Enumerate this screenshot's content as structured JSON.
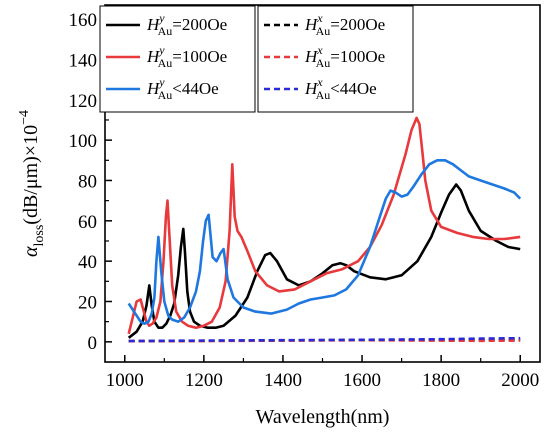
{
  "chart_data": {
    "type": "line",
    "xlabel": "Wavelength(nm)",
    "ylabel": "α_loss(dB/μm)×10^-4",
    "ylabel_parts": {
      "symbol": "α",
      "sub": "loss",
      "units": "(dB/μm)×10",
      "exp": "−4"
    },
    "xlim": [
      950,
      2050
    ],
    "ylim": [
      -10,
      167
    ],
    "xticks": [
      1000,
      1200,
      1400,
      1600,
      1800,
      2000
    ],
    "yticks": [
      0,
      20,
      40,
      60,
      80,
      100,
      120,
      140,
      160
    ],
    "grid": false,
    "legend_position": "top",
    "series": [
      {
        "name": "H_Au^y=200Oe",
        "label": {
          "main": "H",
          "sup": "y",
          "sub": "Au",
          "rest": "=200Oe"
        },
        "color": "#000000",
        "dash": "solid",
        "x": [
          1010,
          1030,
          1045,
          1055,
          1062,
          1068,
          1075,
          1085,
          1095,
          1105,
          1115,
          1125,
          1135,
          1142,
          1148,
          1152,
          1158,
          1165,
          1175,
          1190,
          1210,
          1230,
          1250,
          1280,
          1310,
          1335,
          1355,
          1368,
          1385,
          1410,
          1440,
          1470,
          1500,
          1525,
          1545,
          1560,
          1580,
          1620,
          1660,
          1700,
          1740,
          1775,
          1800,
          1820,
          1838,
          1850,
          1870,
          1900,
          1940,
          1970,
          2000
        ],
        "y": [
          2,
          5,
          10,
          18,
          28,
          18,
          10,
          7,
          7,
          9,
          13,
          19,
          33,
          47,
          56,
          45,
          25,
          15,
          10,
          8,
          7,
          7,
          8,
          13,
          22,
          35,
          43,
          44,
          40,
          31,
          28,
          30,
          34,
          38,
          39,
          38,
          35,
          32,
          31,
          33,
          40,
          52,
          64,
          73,
          78,
          75,
          65,
          55,
          50,
          47,
          46
        ]
      },
      {
        "name": "H_Au^y=100Oe",
        "label": {
          "main": "H",
          "sup": "y",
          "sub": "Au",
          "rest": "=100Oe"
        },
        "color": "#e8393c",
        "dash": "solid",
        "x": [
          1010,
          1020,
          1030,
          1040,
          1048,
          1055,
          1062,
          1070,
          1080,
          1090,
          1098,
          1104,
          1108,
          1113,
          1120,
          1130,
          1145,
          1160,
          1180,
          1200,
          1220,
          1240,
          1255,
          1265,
          1272,
          1278,
          1285,
          1295,
          1310,
          1330,
          1360,
          1390,
          1430,
          1470,
          1510,
          1550,
          1590,
          1620,
          1650,
          1680,
          1710,
          1725,
          1738,
          1745,
          1752,
          1760,
          1775,
          1800,
          1840,
          1880,
          1920,
          1960,
          2000
        ],
        "y": [
          4,
          12,
          20,
          21,
          15,
          10,
          8,
          9,
          12,
          20,
          40,
          62,
          70,
          52,
          28,
          15,
          10,
          8,
          7,
          8,
          10,
          17,
          30,
          55,
          88,
          62,
          55,
          52,
          45,
          35,
          28,
          25,
          26,
          30,
          34,
          36,
          40,
          47,
          58,
          73,
          93,
          105,
          111,
          108,
          95,
          80,
          65,
          57,
          54,
          52,
          51,
          51,
          52
        ]
      },
      {
        "name": "H_Au^y<44Oe",
        "label": {
          "main": "H",
          "sup": "y",
          "sub": "Au",
          "rest": "<44Oe"
        },
        "color": "#1f77e0",
        "dash": "solid",
        "x": [
          1010,
          1020,
          1030,
          1040,
          1050,
          1060,
          1068,
          1075,
          1080,
          1085,
          1092,
          1100,
          1110,
          1120,
          1135,
          1150,
          1165,
          1180,
          1190,
          1198,
          1205,
          1212,
          1222,
          1232,
          1242,
          1250,
          1260,
          1275,
          1300,
          1330,
          1370,
          1410,
          1440,
          1470,
          1500,
          1530,
          1560,
          1590,
          1620,
          1645,
          1660,
          1672,
          1685,
          1700,
          1715,
          1730,
          1750,
          1770,
          1790,
          1810,
          1830,
          1850,
          1870,
          1900,
          1930,
          1960,
          1985,
          2000
        ],
        "y": [
          19,
          16,
          13,
          10,
          9,
          10,
          14,
          22,
          40,
          52,
          35,
          20,
          13,
          11,
          10,
          12,
          17,
          25,
          35,
          50,
          60,
          63,
          42,
          40,
          44,
          46,
          31,
          22,
          17,
          15,
          14,
          16,
          19,
          21,
          22,
          23,
          26,
          33,
          47,
          62,
          71,
          75,
          74,
          72,
          73,
          77,
          83,
          88,
          90,
          90,
          88,
          85,
          82,
          80,
          78,
          76,
          74,
          71
        ]
      },
      {
        "name": "H_Au^x=200Oe",
        "label": {
          "main": "H",
          "sup": "x",
          "sub": "Au",
          "rest": "=200Oe"
        },
        "color": "#000000",
        "dash": "dashed",
        "x": [
          1010,
          1200,
          1400,
          1600,
          1800,
          1900,
          2000
        ],
        "y": [
          0.3,
          0.5,
          0.7,
          0.9,
          1.0,
          1.0,
          1.0
        ]
      },
      {
        "name": "H_Au^x=100Oe",
        "label": {
          "main": "H",
          "sup": "x",
          "sub": "Au",
          "rest": "=100Oe"
        },
        "color": "#e8393c",
        "dash": "dashed",
        "x": [
          1010,
          1200,
          1400,
          1600,
          1800,
          1900,
          2000
        ],
        "y": [
          0.3,
          0.4,
          0.6,
          0.8,
          0.6,
          0.5,
          0.6
        ]
      },
      {
        "name": "H_Au^x<44Oe",
        "label": {
          "main": "H",
          "sup": "x",
          "sub": "Au",
          "rest": "<44Oe"
        },
        "color": "#2a2ad8",
        "dash": "dashed",
        "x": [
          1010,
          1200,
          1400,
          1600,
          1800,
          1900,
          2000
        ],
        "y": [
          0.4,
          0.6,
          0.8,
          1.0,
          1.3,
          1.6,
          1.8
        ]
      }
    ]
  }
}
